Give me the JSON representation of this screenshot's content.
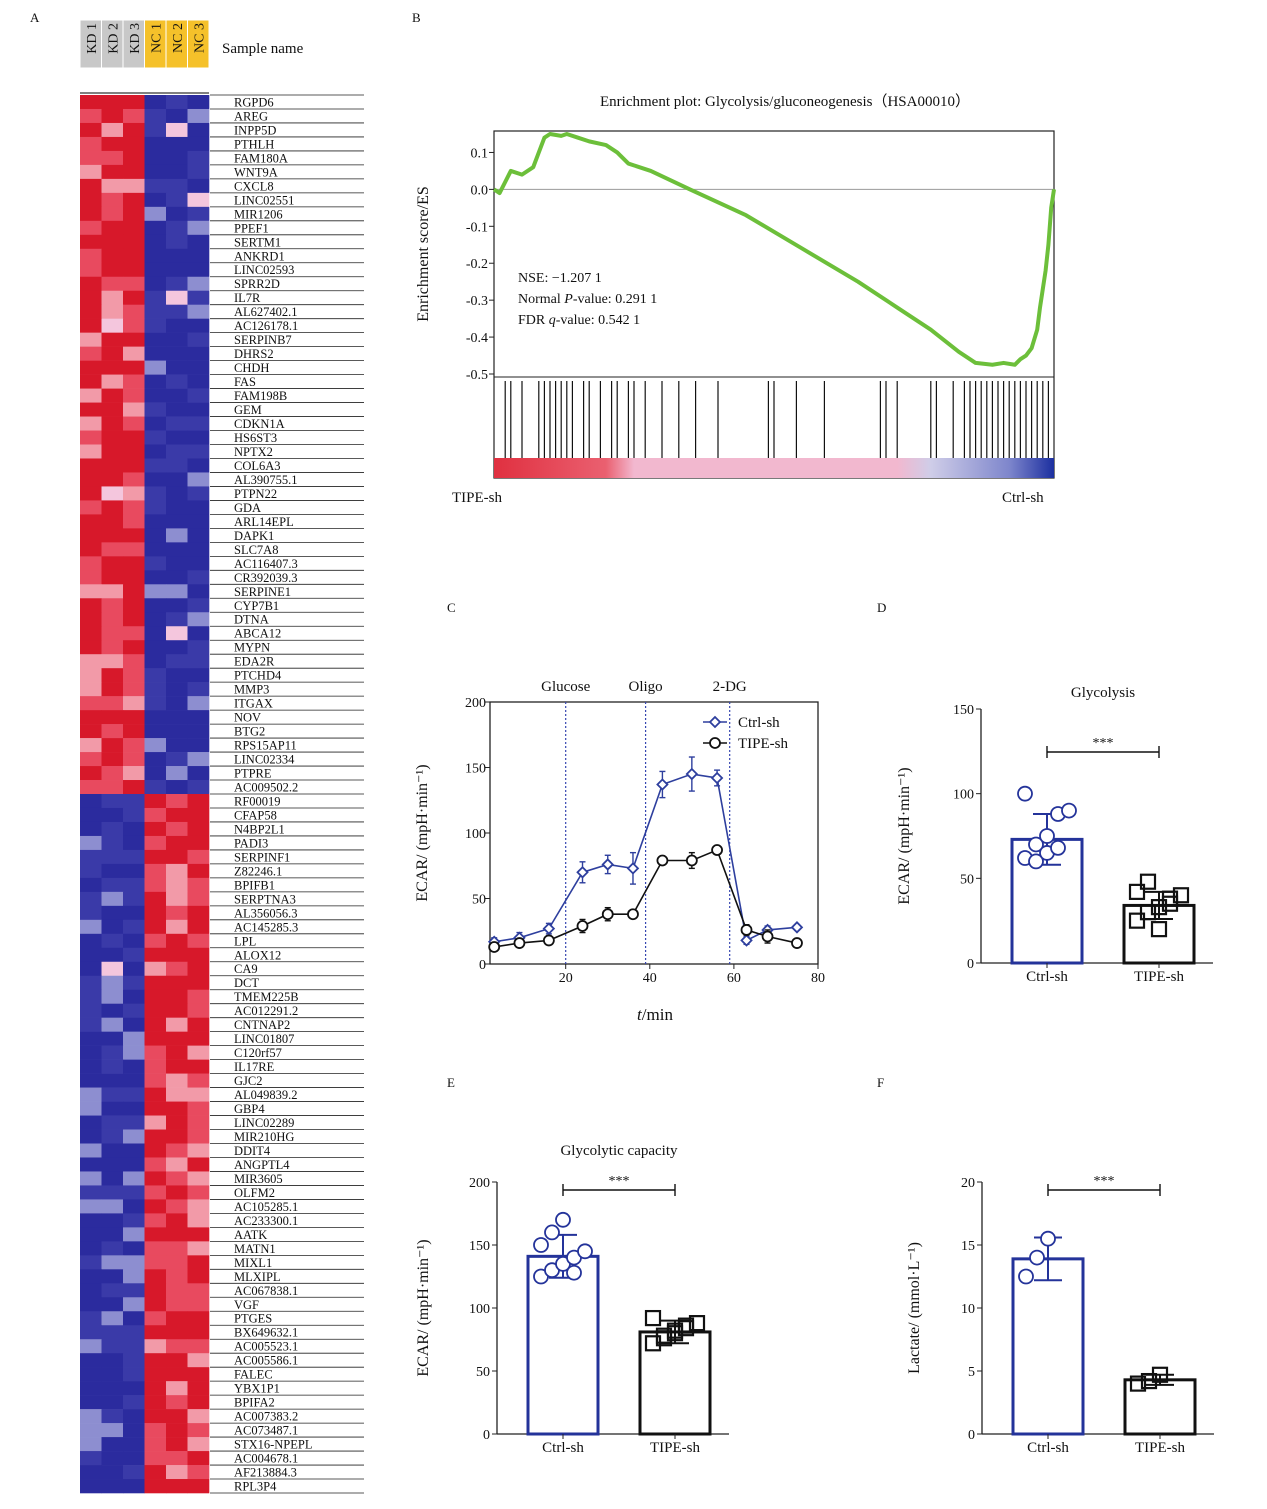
{
  "panels": {
    "a": "A",
    "b": "B",
    "c": "C",
    "d": "D",
    "e": "E",
    "f": "F"
  },
  "heatmap": {
    "sample_name_label": "Sample name",
    "samples": [
      {
        "label": "KD 1",
        "color": "#c8c8c8"
      },
      {
        "label": "KD 2",
        "color": "#c8c8c8"
      },
      {
        "label": "KD 3",
        "color": "#c8c8c8"
      },
      {
        "label": "NC 1",
        "color": "#f5c12a"
      },
      {
        "label": "NC 2",
        "color": "#f5c12a"
      },
      {
        "label": "NC 3",
        "color": "#f5c12a"
      }
    ],
    "genes": [
      "RGPD6",
      "AREG",
      "INPP5D",
      "PTHLH",
      "FAM180A",
      "WNT9A",
      "CXCL8",
      "LINC02551",
      "MIR1206",
      "PPEF1",
      "SERTM1",
      "ANKRD1",
      "LINC02593",
      "SPRR2D",
      "IL7R",
      "AL627402.1",
      "AC126178.1",
      "SERPINB7",
      "DHRS2",
      "CHDH",
      "FAS",
      "FAM198B",
      "GEM",
      "CDKN1A",
      "HS6ST3",
      "NPTX2",
      "COL6A3",
      "AL390755.1",
      "PTPN22",
      "GDA",
      "ARL14EPL",
      "DAPK1",
      "SLC7A8",
      "AC116407.3",
      "CR392039.3",
      "SERPINE1",
      "CYP7B1",
      "DTNA",
      "ABCA12",
      "MYPN",
      "EDA2R",
      "PTCHD4",
      "MMP3",
      "ITGAX",
      "NOV",
      "BTG2",
      "RPS15AP11",
      "LINC02334",
      "PTPRE",
      "AC009502.2",
      "RF00019",
      "CFAP58",
      "N4BP2L1",
      "PADI3",
      "SERPINF1",
      "Z82246.1",
      "BPIFB1",
      "SERPTNA3",
      "AL356056.3",
      "AC145285.3",
      "LPL",
      "ALOX12",
      "CA9",
      "DCT",
      "TMEM225B",
      "AC012291.2",
      "CNTNAP2",
      "LINC01807",
      "C120rf57",
      "IL17RE",
      "GJC2",
      "AL049839.2",
      "GBP4",
      "LINC02289",
      "MIR210HG",
      "DDIT4",
      "ANGPTL4",
      "MIR3605",
      "OLFM2",
      "AC105285.1",
      "AC233300.1",
      "AATK",
      "MATN1",
      "MIXL1",
      "MLXIPL",
      "AC067838.1",
      "VGF",
      "PTGES",
      "BX649632.1",
      "AC005523.1",
      "AC005586.1",
      "FALEC",
      "YBX1P1",
      "BPIFA2",
      "AC007383.2",
      "AC073487.1",
      "STX16-NPEPL",
      "AC004678.1",
      "AF213884.3",
      "RPL3P4"
    ],
    "up_count": 50,
    "colors": {
      "high": "#d7182a",
      "mid_high": "#e84a5f",
      "light_high": "#f29aa8",
      "pale": "#f4c6dd",
      "low": "#2b2b9e",
      "mid_low": "#3a3aa8",
      "light_low": "#8d8ed0"
    }
  },
  "gsea": {
    "title": "Enrichment plot: Glycolysis/gluconeogenesis（HSA00010）",
    "ylabel": "Enrichment score/ES",
    "yticks": [
      "0.1",
      "0.0",
      "-0.1",
      "-0.2",
      "-0.3",
      "-0.4",
      "-0.5"
    ],
    "stats": [
      {
        "prefix": "NSE: −1.207 1",
        "italic": "",
        "suffix": ""
      },
      {
        "prefix": "Normal ",
        "italic": "P",
        "suffix": "-value: 0.291 1"
      },
      {
        "prefix": "FDR ",
        "italic": "q",
        "suffix": "-value: 0.542 1"
      }
    ],
    "left_label": "TIPE-sh",
    "right_label": "Ctrl-sh",
    "line_color": "#6cbf3a",
    "ylim": [
      -0.5,
      0.15
    ],
    "curve": [
      [
        0,
        0
      ],
      [
        0.01,
        -0.01
      ],
      [
        0.02,
        0.02
      ],
      [
        0.03,
        0.05
      ],
      [
        0.05,
        0.04
      ],
      [
        0.07,
        0.06
      ],
      [
        0.08,
        0.1
      ],
      [
        0.09,
        0.14
      ],
      [
        0.1,
        0.15
      ],
      [
        0.12,
        0.145
      ],
      [
        0.13,
        0.15
      ],
      [
        0.15,
        0.14
      ],
      [
        0.17,
        0.13
      ],
      [
        0.2,
        0.12
      ],
      [
        0.22,
        0.1
      ],
      [
        0.24,
        0.07
      ],
      [
        0.28,
        0.05
      ],
      [
        0.35,
        0.0
      ],
      [
        0.45,
        -0.07
      ],
      [
        0.55,
        -0.16
      ],
      [
        0.65,
        -0.25
      ],
      [
        0.72,
        -0.32
      ],
      [
        0.78,
        -0.38
      ],
      [
        0.83,
        -0.44
      ],
      [
        0.86,
        -0.47
      ],
      [
        0.89,
        -0.475
      ],
      [
        0.91,
        -0.47
      ],
      [
        0.93,
        -0.475
      ],
      [
        0.94,
        -0.46
      ],
      [
        0.95,
        -0.45
      ],
      [
        0.96,
        -0.43
      ],
      [
        0.97,
        -0.38
      ],
      [
        0.975,
        -0.32
      ],
      [
        0.98,
        -0.27
      ],
      [
        0.985,
        -0.22
      ],
      [
        0.99,
        -0.15
      ],
      [
        0.995,
        -0.05
      ],
      [
        1.0,
        0.0
      ]
    ],
    "hits": [
      0.02,
      0.03,
      0.05,
      0.08,
      0.09,
      0.1,
      0.11,
      0.12,
      0.13,
      0.14,
      0.16,
      0.17,
      0.19,
      0.21,
      0.22,
      0.24,
      0.25,
      0.27,
      0.3,
      0.33,
      0.36,
      0.4,
      0.49,
      0.5,
      0.54,
      0.59,
      0.69,
      0.7,
      0.72,
      0.78,
      0.79,
      0.82,
      0.84,
      0.85,
      0.86,
      0.87,
      0.88,
      0.89,
      0.9,
      0.91,
      0.92,
      0.93,
      0.94,
      0.95,
      0.96,
      0.97,
      0.98,
      0.99
    ]
  },
  "chart_data": [
    {
      "panel": "C",
      "type": "line",
      "ylabel": "ECAR/ (mpH·min⁻¹)",
      "xlabel_italic": "t",
      "xlabel_rest": "/min",
      "xlim": [
        2,
        80
      ],
      "ylim": [
        0,
        200
      ],
      "xticks": [
        20,
        40,
        60,
        80
      ],
      "yticks": [
        0,
        50,
        100,
        150,
        200
      ],
      "injections": [
        {
          "label": "Glucose",
          "x": 20
        },
        {
          "label": "Oligo",
          "x": 39
        },
        {
          "label": "2-DG",
          "x": 59
        }
      ],
      "series": [
        {
          "name": "Ctrl-sh",
          "color": "#2e3f9e",
          "marker": "diamond",
          "x": [
            3,
            9,
            16,
            24,
            30,
            36,
            43,
            50,
            56,
            63,
            68,
            75
          ],
          "y": [
            17,
            20,
            27,
            70,
            76,
            73,
            137,
            145,
            142,
            18,
            26,
            28
          ],
          "err": [
            3,
            4,
            4,
            8,
            7,
            12,
            10,
            13,
            6,
            3,
            3,
            2
          ]
        },
        {
          "name": "TIPE-sh",
          "color": "#111111",
          "marker": "circle",
          "x": [
            3,
            9,
            16,
            24,
            30,
            36,
            43,
            50,
            56,
            63,
            68,
            75
          ],
          "y": [
            13,
            16,
            18,
            29,
            38,
            38,
            79,
            79,
            87,
            26,
            21,
            16
          ],
          "err": [
            2,
            3,
            3,
            5,
            5,
            3,
            3,
            6,
            3,
            4,
            5,
            2
          ]
        }
      ]
    },
    {
      "panel": "D",
      "type": "bar",
      "title": "Glycolysis",
      "ylabel": "ECAR/ (mpH·min⁻¹)",
      "categories": [
        "Ctrl-sh",
        "TIPE-sh"
      ],
      "values": [
        73,
        34
      ],
      "err": [
        15,
        8
      ],
      "ylim": [
        0,
        150
      ],
      "yticks": [
        0,
        50,
        100,
        150
      ],
      "significance": "***",
      "points": [
        [
          62,
          70,
          75,
          88,
          90,
          100,
          60,
          65,
          68
        ],
        [
          25,
          30,
          33,
          38,
          40,
          42,
          48,
          20,
          35
        ]
      ]
    },
    {
      "panel": "E",
      "type": "bar",
      "title": "Glycolytic capacity",
      "ylabel": "ECAR/ (mpH·min⁻¹)",
      "categories": [
        "Ctrl-sh",
        "TIPE-sh"
      ],
      "values": [
        141,
        81
      ],
      "err": [
        17,
        9
      ],
      "ylim": [
        0,
        200
      ],
      "yticks": [
        0,
        50,
        100,
        150,
        200
      ],
      "significance": "***",
      "points": [
        [
          125,
          130,
          135,
          140,
          145,
          150,
          160,
          170,
          128
        ],
        [
          72,
          76,
          80,
          84,
          88,
          92,
          78,
          82,
          86
        ]
      ]
    },
    {
      "panel": "F",
      "type": "bar",
      "title": "",
      "ylabel": "Lactate/ (mmol·L⁻¹)",
      "categories": [
        "Ctrl-sh",
        "TIPE-sh"
      ],
      "values": [
        13.9,
        4.3
      ],
      "err": [
        1.7,
        0.4
      ],
      "ylim": [
        0,
        20
      ],
      "yticks": [
        0,
        5,
        10,
        15,
        20
      ],
      "significance": "***",
      "points": [
        [
          12.5,
          14,
          15.5
        ],
        [
          4.0,
          4.2,
          4.7
        ]
      ]
    }
  ]
}
